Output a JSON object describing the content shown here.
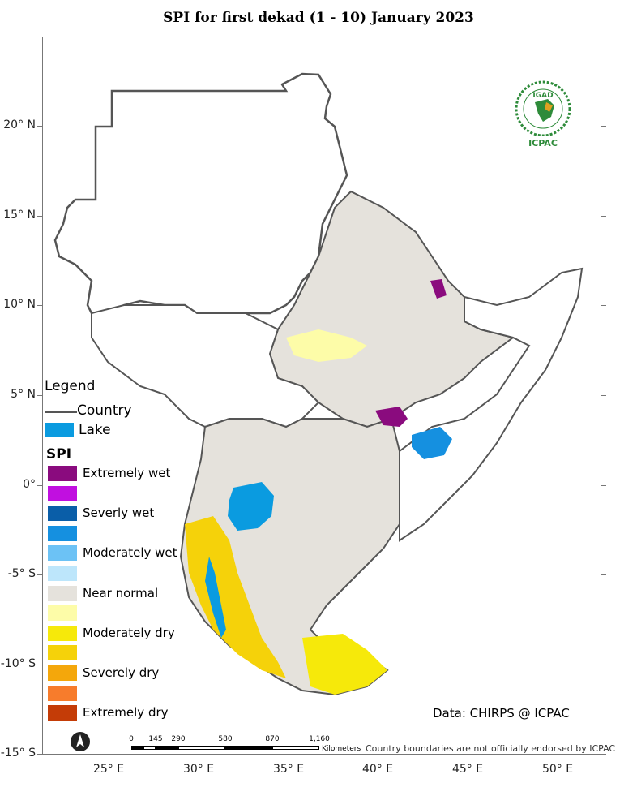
{
  "title": "SPI   for   first  dekad (1 - 10)  January 2023",
  "lat_labels": [
    "20° N",
    "15° N",
    "10° N",
    "5° N",
    "0°",
    "-5° S",
    "-10° S",
    "-15° S"
  ],
  "lon_labels": [
    "25° E",
    "30° E",
    "35° E",
    "40° E",
    "45° E",
    "50° E"
  ],
  "legend": {
    "title": "Legend",
    "country_label": "Country",
    "lake_label": "Lake",
    "spi_title": "SPI",
    "classes": [
      {
        "label": "Extremely wet",
        "color": "#8a0b7e"
      },
      {
        "label": "",
        "color": "#c10fe0"
      },
      {
        "label": "Severly wet",
        "color": "#0a5ea8"
      },
      {
        "label": "",
        "color": "#1590e0"
      },
      {
        "label": "Moderately wet",
        "color": "#6cc2f5"
      },
      {
        "label": "",
        "color": "#bde6fb"
      },
      {
        "label": "Near normal",
        "color": "#e5e2dc"
      },
      {
        "label": "",
        "color": "#fdfca8"
      },
      {
        "label": "Moderately dry",
        "color": "#f6e90a"
      },
      {
        "label": "",
        "color": "#f5d20a"
      },
      {
        "label": "Severely dry",
        "color": "#f4a70b"
      },
      {
        "label": "",
        "color": "#f77c2c"
      },
      {
        "label": "Extremely dry",
        "color": "#c43c07"
      }
    ]
  },
  "colors": {
    "lake": "#0a9be0",
    "country_border": "#555555",
    "near_normal": "#e5e2dc"
  },
  "data_credit": "Data: CHIRPS @ ICPAC",
  "scalebar": {
    "ticks": [
      "0",
      "145",
      "290",
      "580",
      "870",
      "1,160"
    ],
    "unit": "Kilometers"
  },
  "disclaimer": "Country boundaries are not officially endorsed by ICPAC",
  "logo": {
    "name": "IGAD",
    "subtitle": "ICPAC"
  },
  "north_arrow_icon": "north-arrow-icon"
}
